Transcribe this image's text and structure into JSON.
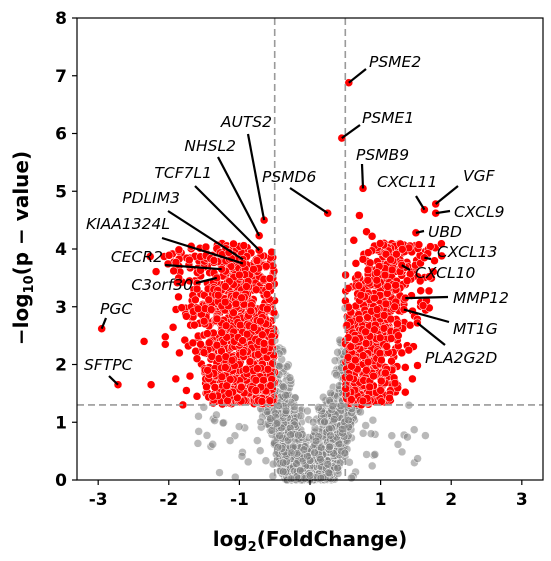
{
  "chart_data": {
    "type": "scatter",
    "title": "",
    "xlabel": {
      "prefix": "log",
      "sub": "2",
      "suffix": "(FoldChange)"
    },
    "ylabel": {
      "prefix": "−log",
      "sub": "10",
      "suffix": "(p − value)"
    },
    "xlim": [
      -3.3,
      3.3
    ],
    "ylim": [
      0,
      8
    ],
    "xticks": [
      -3,
      -2,
      -1,
      0,
      1,
      2,
      3
    ],
    "yticks": [
      0,
      1,
      2,
      3,
      4,
      5,
      6,
      7,
      8
    ],
    "thresholds": {
      "log2fc": [
        -0.5,
        0.5
      ],
      "neg_log10_p": 1.3
    },
    "colors": {
      "significant": "#ff0000",
      "not_significant": "#808080",
      "threshold_line": "#9a9a9a"
    },
    "grid": false,
    "legend": "none",
    "labeled_genes": [
      {
        "gene": "PSME2",
        "x": 0.55,
        "y": 6.88
      },
      {
        "gene": "PSME1",
        "x": 0.45,
        "y": 5.92
      },
      {
        "gene": "PSMB9",
        "x": 0.75,
        "y": 5.05
      },
      {
        "gene": "PSMD6",
        "x": 0.25,
        "y": 4.62
      },
      {
        "gene": "VGF",
        "x": 1.78,
        "y": 4.78
      },
      {
        "gene": "CXCL11",
        "x": 1.62,
        "y": 4.68
      },
      {
        "gene": "CXCL9",
        "x": 1.78,
        "y": 4.62
      },
      {
        "gene": "UBD",
        "x": 1.5,
        "y": 4.28
      },
      {
        "gene": "CXCL13",
        "x": 1.62,
        "y": 3.85
      },
      {
        "gene": "CXCL10",
        "x": 1.3,
        "y": 3.72
      },
      {
        "gene": "MMP12",
        "x": 1.35,
        "y": 3.15
      },
      {
        "gene": "MT1G",
        "x": 1.33,
        "y": 2.95
      },
      {
        "gene": "PLA2G2D",
        "x": 1.52,
        "y": 2.72
      },
      {
        "gene": "AUTS2",
        "x": -0.65,
        "y": 4.5
      },
      {
        "gene": "NHSL2",
        "x": -0.72,
        "y": 4.23
      },
      {
        "gene": "TCF7L1",
        "x": -0.72,
        "y": 3.98
      },
      {
        "gene": "PDLIM3",
        "x": -0.95,
        "y": 3.82
      },
      {
        "gene": "KIAA1324L",
        "x": -0.95,
        "y": 3.75
      },
      {
        "gene": "CECR2",
        "x": -1.25,
        "y": 3.65
      },
      {
        "gene": "C3orf30",
        "x": -1.32,
        "y": 3.5
      },
      {
        "gene": "PGC",
        "x": -2.95,
        "y": 2.62
      },
      {
        "gene": "SFTPC",
        "x": -2.72,
        "y": 1.65
      }
    ],
    "extra_significant_points": [
      [
        -2.35,
        2.4
      ],
      [
        -2.05,
        2.48
      ],
      [
        -2.05,
        2.35
      ],
      [
        -1.85,
        2.2
      ],
      [
        -1.9,
        1.75
      ],
      [
        -1.75,
        1.55
      ],
      [
        -1.7,
        1.8
      ],
      [
        -1.6,
        2.1
      ],
      [
        -1.55,
        2.35
      ],
      [
        -1.5,
        2.75
      ],
      [
        -1.45,
        1.9
      ],
      [
        -1.4,
        2.95
      ],
      [
        -1.38,
        1.45
      ],
      [
        -1.3,
        3.2
      ],
      [
        -1.25,
        2.55
      ],
      [
        -1.2,
        3.35
      ],
      [
        -1.15,
        1.5
      ],
      [
        -1.05,
        3.05
      ],
      [
        -1.0,
        3.55
      ],
      [
        -0.9,
        3.35
      ],
      [
        -0.85,
        2.05
      ],
      [
        -0.8,
        3.65
      ],
      [
        -0.75,
        3.8
      ],
      [
        -0.62,
        3.7
      ],
      [
        -0.58,
        3.35
      ],
      [
        -1.6,
        1.45
      ],
      [
        -1.8,
        1.3
      ],
      [
        -2.25,
        1.65
      ],
      [
        0.62,
        4.15
      ],
      [
        0.65,
        3.75
      ],
      [
        0.68,
        3.55
      ],
      [
        0.72,
        3.2
      ],
      [
        0.8,
        4.3
      ],
      [
        0.88,
        4.22
      ],
      [
        0.95,
        2.95
      ],
      [
        1.05,
        2.85
      ],
      [
        1.1,
        3.35
      ],
      [
        1.15,
        2.45
      ],
      [
        1.2,
        3.0
      ],
      [
        1.25,
        2.5
      ],
      [
        1.3,
        2.2
      ],
      [
        1.35,
        1.95
      ],
      [
        1.4,
        2.25
      ],
      [
        0.7,
        4.58
      ],
      [
        0.9,
        1.8
      ],
      [
        1.0,
        1.55
      ],
      [
        1.45,
        1.75
      ],
      [
        1.35,
        1.52
      ]
    ],
    "dense_cloud": {
      "description": "Thousands of genes forming a V shape around log2FC = 0; points beyond thresholds are red, others grey",
      "significant_band_left": [
        -1.55,
        -0.5
      ],
      "significant_band_right": [
        0.5,
        1.25
      ]
    }
  }
}
